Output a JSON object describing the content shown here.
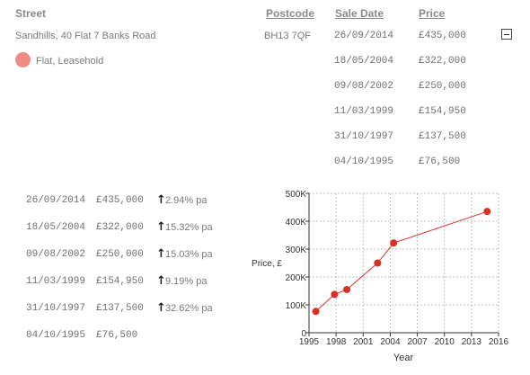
{
  "table": {
    "headers": {
      "street": "Street",
      "postcode": "Postcode",
      "sale_date": "Sale Date",
      "price": "Price"
    },
    "street": "Sandhills, 40 Flat 7 Banks Road",
    "postcode": "BH13 7QF",
    "property_type": "Flat, Leasehold",
    "sales": [
      {
        "date": "26/09/2014",
        "price": "£435,000"
      },
      {
        "date": "18/05/2004",
        "price": "£322,000"
      },
      {
        "date": "09/08/2002",
        "price": "£250,000"
      },
      {
        "date": "11/03/1999",
        "price": "£154,950"
      },
      {
        "date": "31/10/1997",
        "price": "£137,500"
      },
      {
        "date": "04/10/1995",
        "price": "£76,500"
      }
    ]
  },
  "history": [
    {
      "date": "26/09/2014",
      "price": "£435,000",
      "change": "2.94% pa"
    },
    {
      "date": "18/05/2004",
      "price": "£322,000",
      "change": "15.32% pa"
    },
    {
      "date": "09/08/2002",
      "price": "£250,000",
      "change": "15.03% pa"
    },
    {
      "date": "11/03/1999",
      "price": "£154,950",
      "change": "9.19% pa"
    },
    {
      "date": "31/10/1997",
      "price": "£137,500",
      "change": "32.62% pa"
    },
    {
      "date": "04/10/1995",
      "price": "£76,500",
      "change": ""
    }
  ],
  "arrow_glyph": "↑",
  "chart_data": {
    "type": "line",
    "xlabel": "Year",
    "ylabel": "Price, £",
    "xlim": [
      1995,
      2016
    ],
    "ylim": [
      0,
      500000
    ],
    "x_ticks": [
      "1995",
      "1998",
      "2001",
      "2004",
      "2007",
      "2010",
      "2013",
      "2016"
    ],
    "y_ticks": [
      "0",
      "100K",
      "200K",
      "300K",
      "400K",
      "500K"
    ],
    "x_tick_values": [
      1995,
      1998,
      2001,
      2004,
      2007,
      2010,
      2013,
      2016
    ],
    "y_tick_values": [
      0,
      100000,
      200000,
      300000,
      400000,
      500000
    ],
    "series": [
      {
        "x": [
          1995.76,
          1997.83,
          1999.19,
          2002.6,
          2004.38,
          2014.74
        ],
        "y": [
          76500,
          137500,
          154950,
          250000,
          322000,
          435000
        ]
      }
    ],
    "color": "#d93025",
    "grid": true
  }
}
